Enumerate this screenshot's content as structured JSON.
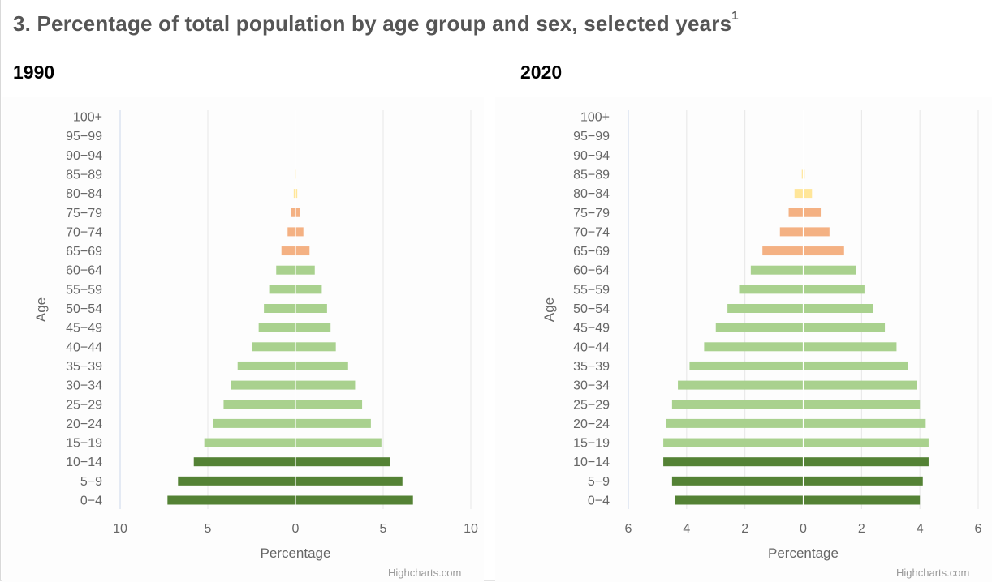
{
  "title": "3. Percentage of total population by age group and sex, selected years",
  "title_note": "1",
  "colors": {
    "young": "#548235",
    "working": "#a9d18e",
    "old": "#f4b183",
    "oldest": "#ffe699",
    "grid": "#e6e6e6",
    "text": "#666666"
  },
  "chart_data": [
    {
      "type": "bar",
      "title": "1990",
      "orientation": "horizontal",
      "categories": [
        "0-4",
        "5-9",
        "10-14",
        "15-19",
        "20-24",
        "25-29",
        "30-34",
        "35-39",
        "40-44",
        "45-49",
        "50-54",
        "55-59",
        "60-64",
        "65-69",
        "70-74",
        "75-79",
        "80-84",
        "85-89",
        "90-94",
        "95-99",
        "100+"
      ],
      "series": [
        {
          "values": [
            -7.3,
            -6.7,
            -5.8,
            -5.2,
            -4.7,
            -4.1,
            -3.7,
            -3.3,
            -2.5,
            -2.1,
            -1.8,
            -1.5,
            -1.1,
            -0.8,
            -0.45,
            -0.25,
            -0.1,
            -0.03,
            0,
            0,
            0
          ]
        },
        {
          "values": [
            6.7,
            6.1,
            5.4,
            4.9,
            4.3,
            3.8,
            3.4,
            3.0,
            2.3,
            2.0,
            1.8,
            1.5,
            1.1,
            0.8,
            0.45,
            0.25,
            0.1,
            0.03,
            0,
            0,
            0
          ]
        }
      ],
      "bar_colors": [
        "young",
        "young",
        "young",
        "working",
        "working",
        "working",
        "working",
        "working",
        "working",
        "working",
        "working",
        "working",
        "working",
        "old",
        "old",
        "old",
        "oldest",
        "oldest",
        "oldest",
        "oldest",
        "oldest"
      ],
      "xlabel": "Percentage",
      "ylabel": "Age",
      "xlim": [
        -10,
        10
      ],
      "ticks": [
        -10,
        -5,
        0,
        5,
        10
      ],
      "tick_labels": [
        "10",
        "5",
        "0",
        "5",
        "10"
      ],
      "grid": true,
      "credits": "Highcharts.com"
    },
    {
      "type": "bar",
      "title": "2020",
      "orientation": "horizontal",
      "categories": [
        "0-4",
        "5-9",
        "10-14",
        "15-19",
        "20-24",
        "25-29",
        "30-34",
        "35-39",
        "40-44",
        "45-49",
        "50-54",
        "55-59",
        "60-64",
        "65-69",
        "70-74",
        "75-79",
        "80-84",
        "85-89",
        "90-94",
        "95-99",
        "100+"
      ],
      "series": [
        {
          "values": [
            -4.4,
            -4.5,
            -4.8,
            -4.8,
            -4.7,
            -4.5,
            -4.3,
            -3.9,
            -3.4,
            -3.0,
            -2.6,
            -2.2,
            -1.8,
            -1.4,
            -0.8,
            -0.5,
            -0.3,
            -0.05,
            0,
            0,
            0
          ]
        },
        {
          "values": [
            4.0,
            4.1,
            4.3,
            4.3,
            4.2,
            4.0,
            3.9,
            3.6,
            3.2,
            2.8,
            2.4,
            2.1,
            1.8,
            1.4,
            0.9,
            0.6,
            0.3,
            0.05,
            0,
            0,
            0
          ]
        }
      ],
      "bar_colors": [
        "young",
        "young",
        "young",
        "working",
        "working",
        "working",
        "working",
        "working",
        "working",
        "working",
        "working",
        "working",
        "working",
        "old",
        "old",
        "old",
        "oldest",
        "oldest",
        "oldest",
        "oldest",
        "oldest"
      ],
      "xlabel": "Percentage",
      "ylabel": "Age",
      "xlim": [
        -6,
        6
      ],
      "ticks": [
        -6,
        -4,
        -2,
        0,
        2,
        4,
        6
      ],
      "tick_labels": [
        "6",
        "4",
        "2",
        "0",
        "2",
        "4",
        "6"
      ],
      "grid": true,
      "credits": "Highcharts.com"
    }
  ]
}
